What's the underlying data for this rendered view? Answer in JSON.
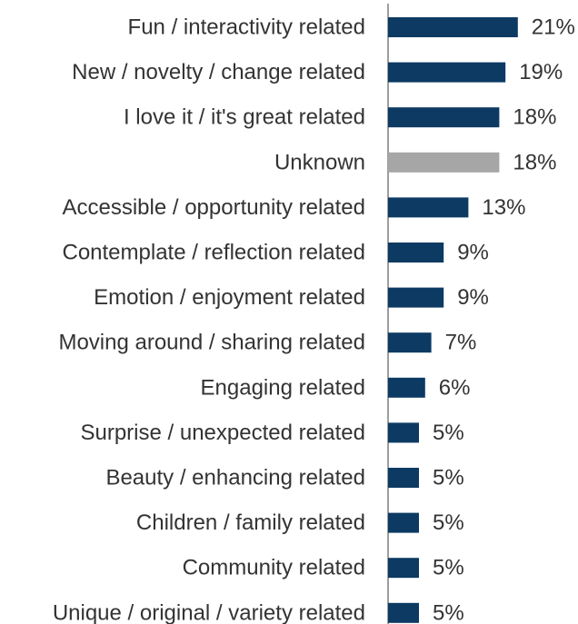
{
  "chart_data": {
    "type": "bar",
    "orientation": "horizontal",
    "title": "",
    "xlabel": "",
    "ylabel": "",
    "categories": [
      "Fun / interactivity related",
      "New / novelty / change related",
      "I love it / it's great related",
      "Unknown",
      "Accessible / opportunity related",
      "Contemplate / reflection related",
      "Emotion / enjoyment related",
      "Moving around / sharing related",
      "Engaging related",
      "Surprise / unexpected related",
      "Beauty / enhancing related",
      "Children / family related",
      "Community related",
      "Unique / original / variety related"
    ],
    "values": [
      21,
      19,
      18,
      18,
      13,
      9,
      9,
      7,
      6,
      5,
      5,
      5,
      5,
      5
    ],
    "value_labels": [
      "21%",
      "19%",
      "18%",
      "18%",
      "13%",
      "9%",
      "9%",
      "7%",
      "6%",
      "5%",
      "5%",
      "5%",
      "5%",
      "5%"
    ],
    "bar_colors": [
      "#0c3a63",
      "#0c3a63",
      "#0c3a63",
      "#a6a6a6",
      "#0c3a63",
      "#0c3a63",
      "#0c3a63",
      "#0c3a63",
      "#0c3a63",
      "#0c3a63",
      "#0c3a63",
      "#0c3a63",
      "#0c3a63",
      "#0c3a63"
    ],
    "xlim": [
      0,
      25
    ],
    "grid": false,
    "legend": "none"
  }
}
